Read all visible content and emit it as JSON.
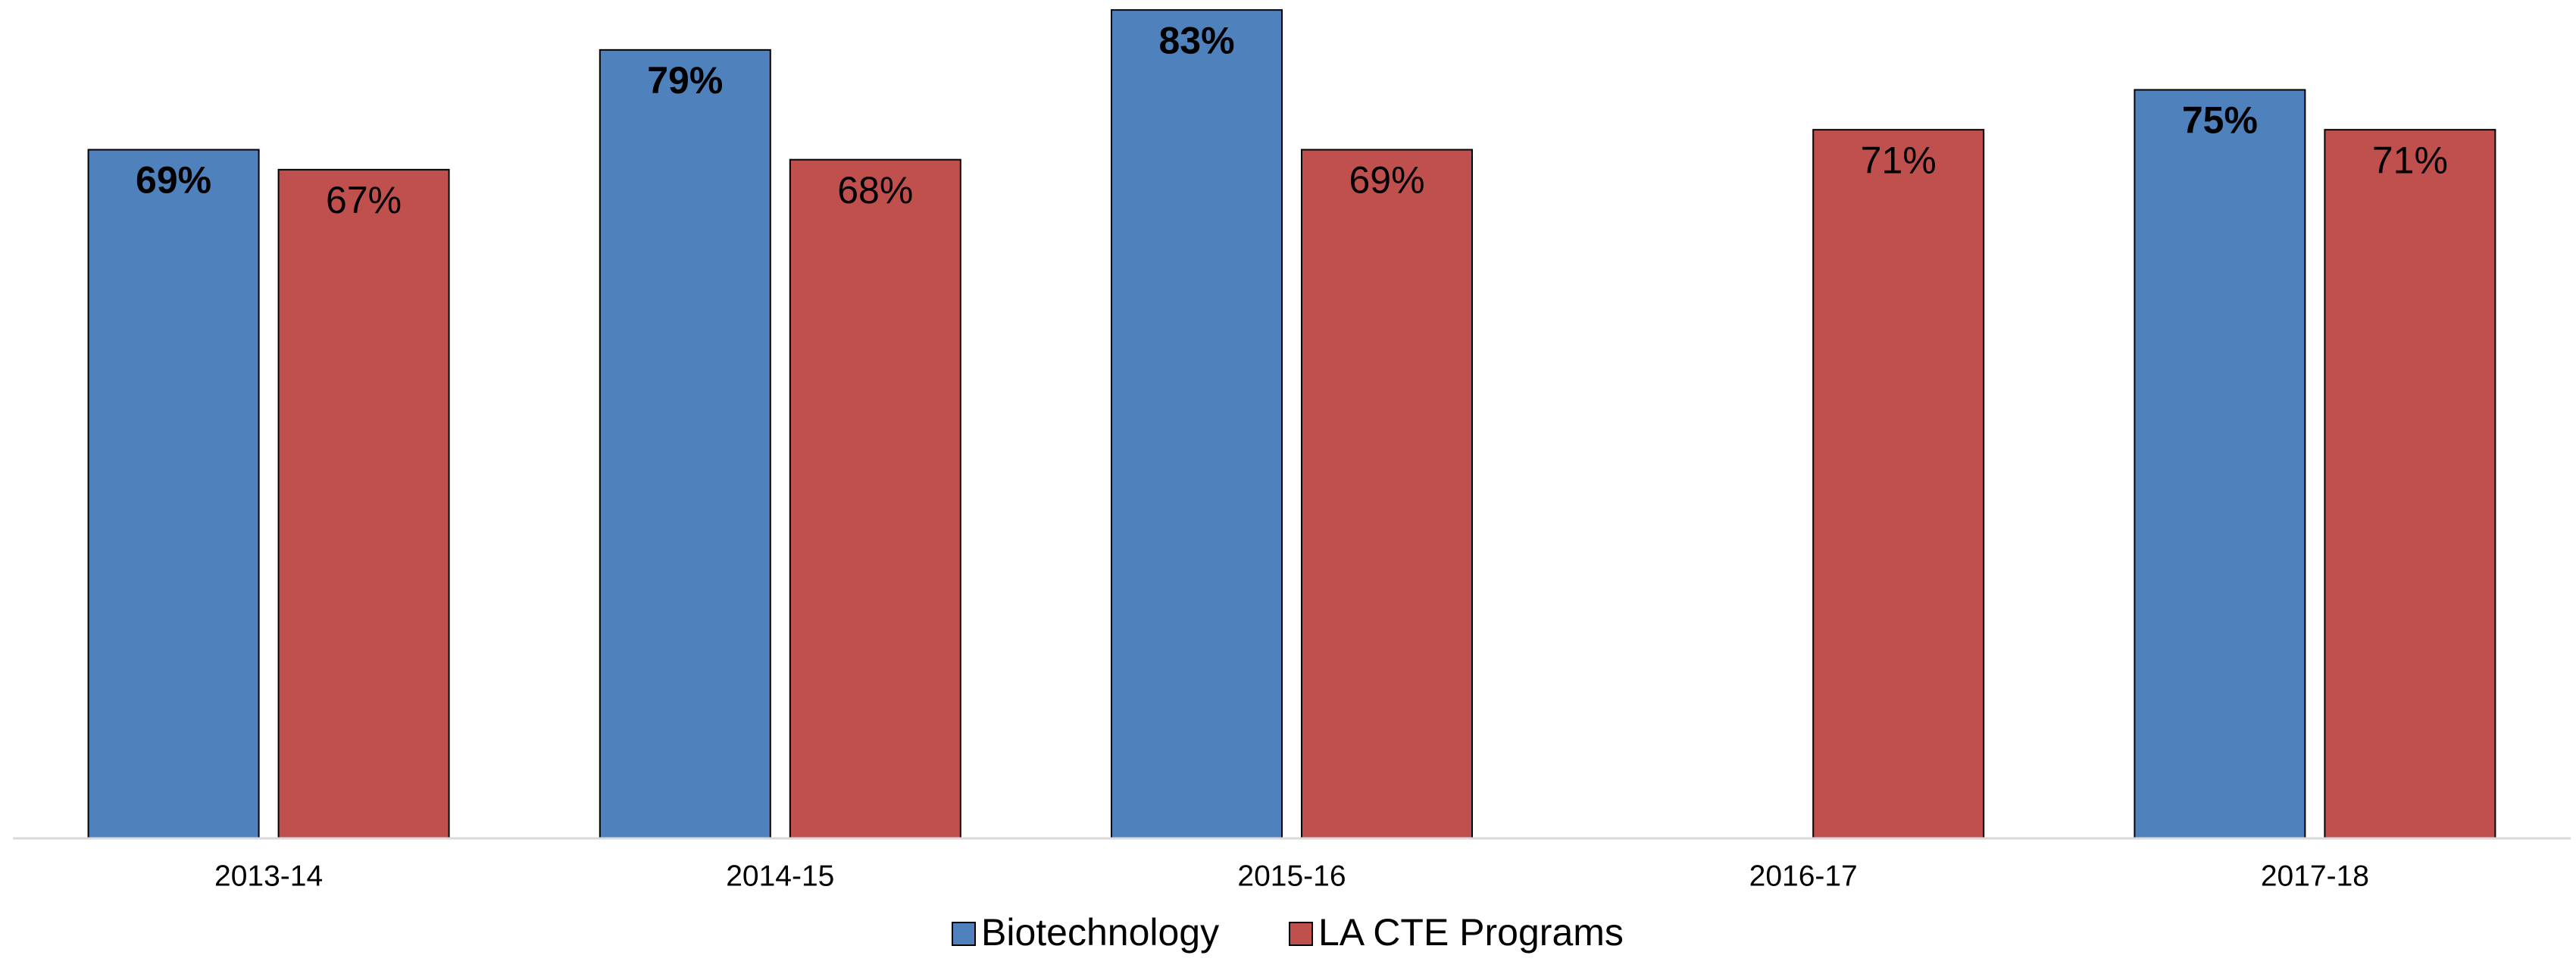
{
  "chart_data": {
    "type": "bar",
    "categories": [
      "2013-14",
      "2014-15",
      "2015-16",
      "2016-17",
      "2017-18"
    ],
    "series": [
      {
        "name": "Biotechnology",
        "color": "#4f81bd",
        "values": [
          69,
          79,
          83,
          null,
          75
        ],
        "value_labels": [
          "69%",
          "79%",
          "83%",
          null,
          "75%"
        ]
      },
      {
        "name": "LA CTE Programs",
        "color": "#c0504d",
        "values": [
          67,
          68,
          69,
          71,
          71
        ],
        "value_labels": [
          "67%",
          "68%",
          "69%",
          "71%",
          "71%"
        ]
      }
    ],
    "ylim": [
      0,
      84
    ],
    "legend": "bottom"
  }
}
